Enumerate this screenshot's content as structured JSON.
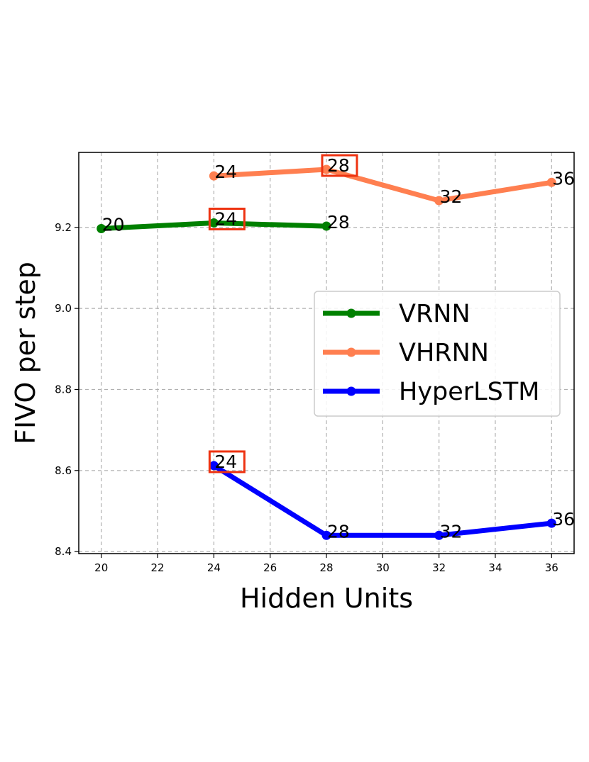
{
  "chart_data": {
    "type": "line",
    "xlabel": "Hidden Units",
    "ylabel": "FIVO per step",
    "xlim": [
      19.2,
      36.8
    ],
    "ylim": [
      8.395,
      9.385
    ],
    "xticks": [
      20,
      22,
      24,
      26,
      28,
      30,
      32,
      34,
      36
    ],
    "yticks": [
      8.4,
      8.6,
      8.8,
      9.0,
      9.2
    ],
    "xtick_labels": [
      "20",
      "22",
      "24",
      "26",
      "28",
      "30",
      "32",
      "34",
      "36"
    ],
    "ytick_labels": [
      "8.4",
      "8.6",
      "8.8",
      "9.0",
      "9.2"
    ],
    "grid": true,
    "legend_position": "center-right",
    "series": [
      {
        "name": "VRNN",
        "color": "#008000",
        "x": [
          20,
          24,
          28
        ],
        "y": [
          9.197,
          9.211,
          9.203
        ],
        "labels": [
          "20",
          "24",
          "28"
        ],
        "highlighted": "24"
      },
      {
        "name": "VHRNN",
        "color": "#ff7f50",
        "x": [
          24,
          28,
          32,
          36
        ],
        "y": [
          9.327,
          9.343,
          9.266,
          9.311
        ],
        "labels": [
          "24",
          "28",
          "32",
          "36"
        ],
        "highlighted": "28"
      },
      {
        "name": "HyperLSTM",
        "color": "#0000ff",
        "x": [
          24,
          28,
          32,
          36
        ],
        "y": [
          8.612,
          8.44,
          8.44,
          8.47
        ],
        "labels": [
          "24",
          "28",
          "32",
          "36"
        ],
        "highlighted": "24"
      }
    ],
    "highlight_color": "#ee3311"
  }
}
